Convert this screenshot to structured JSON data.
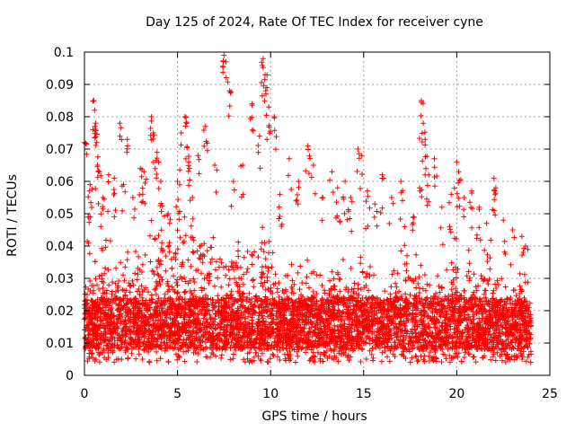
{
  "title": "Day 125 of 2024, Rate Of TEC Index for receiver cyne",
  "chart_data": {
    "type": "scatter",
    "title": "Day 125 of 2024, Rate Of TEC Index for receiver cyne",
    "xlabel": "GPS time / hours",
    "ylabel": "ROTI / TECUs",
    "xlim": [
      0,
      25
    ],
    "ylim": [
      0,
      0.1
    ],
    "xticks": [
      "0",
      "5",
      "10",
      "15",
      "20",
      "25"
    ],
    "yticks": [
      "0",
      "0.01",
      "0.02",
      "0.03",
      "0.04",
      "0.05",
      "0.06",
      "0.07",
      "0.08",
      "0.09",
      "0.1"
    ],
    "grid": true,
    "marker": "+",
    "color": "#ff0000",
    "series": [
      {
        "name": "",
        "points": [
          [
            0.0,
            0.072
          ],
          [
            0.2,
            0.049
          ],
          [
            0.3,
            0.059
          ],
          [
            0.5,
            0.085
          ],
          [
            0.55,
            0.082
          ],
          [
            0.6,
            0.078
          ],
          [
            0.7,
            0.065
          ],
          [
            0.8,
            0.063
          ],
          [
            1.0,
            0.055
          ],
          [
            1.3,
            0.062
          ],
          [
            1.6,
            0.061
          ],
          [
            1.9,
            0.078
          ],
          [
            2.1,
            0.059
          ],
          [
            2.3,
            0.073
          ],
          [
            2.6,
            0.055
          ],
          [
            3.0,
            0.064
          ],
          [
            3.2,
            0.063
          ],
          [
            3.6,
            0.08
          ],
          [
            3.7,
            0.075
          ],
          [
            3.9,
            0.069
          ],
          [
            4.1,
            0.06
          ],
          [
            4.5,
            0.05
          ],
          [
            5.0,
            0.06
          ],
          [
            5.2,
            0.075
          ],
          [
            5.4,
            0.08
          ],
          [
            5.5,
            0.078
          ],
          [
            5.6,
            0.066
          ],
          [
            5.8,
            0.055
          ],
          [
            6.1,
            0.068
          ],
          [
            6.5,
            0.077
          ],
          [
            7.0,
            0.065
          ],
          [
            7.5,
            0.099
          ],
          [
            7.6,
            0.097
          ],
          [
            7.8,
            0.088
          ],
          [
            8.0,
            0.06
          ],
          [
            8.5,
            0.065
          ],
          [
            9.0,
            0.084
          ],
          [
            9.4,
            0.074
          ],
          [
            9.6,
            0.098
          ],
          [
            9.7,
            0.093
          ],
          [
            9.8,
            0.089
          ],
          [
            9.9,
            0.083
          ],
          [
            10.2,
            0.08
          ],
          [
            10.5,
            0.056
          ],
          [
            11.0,
            0.067
          ],
          [
            11.5,
            0.06
          ],
          [
            12.0,
            0.071
          ],
          [
            12.3,
            0.065
          ],
          [
            12.8,
            0.055
          ],
          [
            13.3,
            0.063
          ],
          [
            13.6,
            0.058
          ],
          [
            14.0,
            0.06
          ],
          [
            14.3,
            0.055
          ],
          [
            14.7,
            0.07
          ],
          [
            14.9,
            0.068
          ],
          [
            15.2,
            0.057
          ],
          [
            15.6,
            0.053
          ],
          [
            16.0,
            0.062
          ],
          [
            16.5,
            0.055
          ],
          [
            17.0,
            0.06
          ],
          [
            17.2,
            0.046
          ],
          [
            17.7,
            0.049
          ],
          [
            18.0,
            0.058
          ],
          [
            18.1,
            0.085
          ],
          [
            18.2,
            0.078
          ],
          [
            18.3,
            0.073
          ],
          [
            18.5,
            0.062
          ],
          [
            18.8,
            0.067
          ],
          [
            19.2,
            0.052
          ],
          [
            19.7,
            0.056
          ],
          [
            20.0,
            0.066
          ],
          [
            20.1,
            0.063
          ],
          [
            20.4,
            0.055
          ],
          [
            20.8,
            0.057
          ],
          [
            21.2,
            0.052
          ],
          [
            21.6,
            0.047
          ],
          [
            22.0,
            0.061
          ],
          [
            22.1,
            0.058
          ],
          [
            22.5,
            0.048
          ],
          [
            23.0,
            0.045
          ],
          [
            23.5,
            0.043
          ],
          [
            23.7,
            0.04
          ]
        ]
      }
    ],
    "density": {
      "description": "dense cloud of points per 0.5-hour bin: [hour, cloud_upper_limit]",
      "profile": [
        [
          0,
          0.03
        ],
        [
          0.5,
          0.036
        ],
        [
          1,
          0.04
        ],
        [
          1.5,
          0.038
        ],
        [
          2,
          0.035
        ],
        [
          2.5,
          0.036
        ],
        [
          3,
          0.038
        ],
        [
          3.5,
          0.042
        ],
        [
          4,
          0.045
        ],
        [
          4.5,
          0.046
        ],
        [
          5,
          0.043
        ],
        [
          5.5,
          0.05
        ],
        [
          6,
          0.045
        ],
        [
          6.5,
          0.04
        ],
        [
          7,
          0.042
        ],
        [
          7.5,
          0.043
        ],
        [
          8,
          0.04
        ],
        [
          8.5,
          0.036
        ],
        [
          9,
          0.038
        ],
        [
          9.5,
          0.044
        ],
        [
          10,
          0.04
        ],
        [
          10.5,
          0.032
        ],
        [
          11,
          0.033
        ],
        [
          11.5,
          0.03
        ],
        [
          12,
          0.032
        ],
        [
          12.5,
          0.028
        ],
        [
          13,
          0.03
        ],
        [
          13.5,
          0.034
        ],
        [
          14,
          0.033
        ],
        [
          14.5,
          0.032
        ],
        [
          15,
          0.034
        ],
        [
          15.5,
          0.031
        ],
        [
          16,
          0.03
        ],
        [
          16.5,
          0.032
        ],
        [
          17,
          0.036
        ],
        [
          17.5,
          0.033
        ],
        [
          18,
          0.036
        ],
        [
          18.5,
          0.034
        ],
        [
          19,
          0.033
        ],
        [
          19.5,
          0.036
        ],
        [
          20,
          0.04
        ],
        [
          20.5,
          0.038
        ],
        [
          21,
          0.034
        ],
        [
          21.5,
          0.035
        ],
        [
          22,
          0.038
        ],
        [
          22.5,
          0.03
        ],
        [
          23,
          0.025
        ],
        [
          23.5,
          0.03
        ],
        [
          24,
          0.025
        ]
      ],
      "lower_limit": 0.004
    }
  }
}
